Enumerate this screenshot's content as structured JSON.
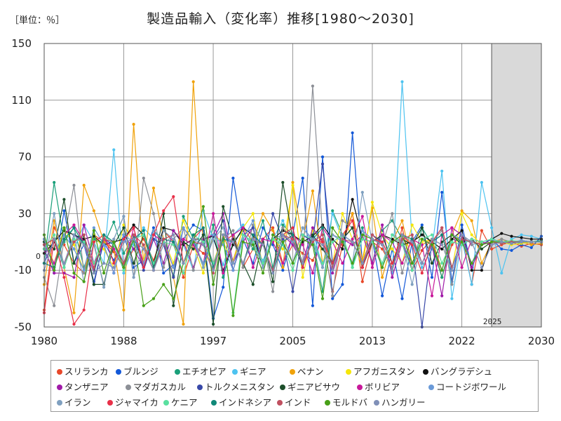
{
  "unit_label": "［単位：％］",
  "chart_data": {
    "type": "line",
    "title": "製造品輸入（変化率）推移[1980～2030]",
    "xlabel": "",
    "ylabel": "",
    "xlim": [
      1980,
      2030
    ],
    "ylim": [
      -50,
      150
    ],
    "xticks": [
      1980,
      1988,
      1997,
      2005,
      2013,
      2022,
      2030
    ],
    "yticks": [
      -50,
      -10,
      30,
      70,
      110,
      150
    ],
    "zero_label": "0",
    "forecast_start": 2025,
    "forecast_label": "2025",
    "grid": true,
    "legend_position": "bottom",
    "series": [
      {
        "name": "スリランカ",
        "color": "#e8482a",
        "values": [
          -38,
          20,
          8,
          -5,
          -12,
          15,
          10,
          3,
          -8,
          5,
          12,
          -3,
          18,
          10,
          -15,
          8,
          2,
          -5,
          10,
          15,
          -8,
          5,
          12,
          20,
          -5,
          8,
          2,
          -3,
          12,
          -25,
          8,
          30,
          -18,
          10,
          5,
          -8,
          20,
          -10,
          4,
          12,
          -15,
          8,
          15,
          -20,
          18,
          5,
          8,
          10,
          7,
          9,
          8
        ]
      },
      {
        "name": "ブルンジ",
        "color": "#1358d8",
        "values": [
          5,
          -12,
          32,
          -5,
          8,
          -18,
          10,
          -3,
          15,
          -8,
          -3,
          20,
          -12,
          -6,
          12,
          22,
          18,
          -44,
          -22,
          55,
          12,
          -5,
          20,
          8,
          -10,
          15,
          55,
          -35,
          70,
          -30,
          -20,
          87,
          -5,
          12,
          -28,
          5,
          -30,
          10,
          22,
          -15,
          45,
          -18,
          22,
          -8,
          10,
          12,
          5,
          4,
          8,
          6,
          14
        ]
      },
      {
        "name": "エチオピア",
        "color": "#1aa07a",
        "values": [
          -5,
          52,
          10,
          20,
          -8,
          12,
          8,
          24,
          2,
          14,
          -5,
          18,
          10,
          -14,
          28,
          12,
          -8,
          22,
          -15,
          10,
          18,
          5,
          25,
          -8,
          22,
          15,
          -5,
          12,
          -25,
          32,
          15,
          -8,
          20,
          -5,
          18,
          25,
          12,
          -10,
          20,
          8,
          -15,
          12,
          10,
          -5,
          8,
          12,
          10,
          10,
          9,
          10,
          11
        ]
      },
      {
        "name": "ギニア",
        "color": "#4dc3f0",
        "values": [
          10,
          -8,
          15,
          5,
          22,
          10,
          -5,
          75,
          -12,
          8,
          20,
          12,
          -5,
          18,
          8,
          -10,
          32,
          12,
          -6,
          15,
          22,
          8,
          -3,
          12,
          25,
          10,
          -5,
          18,
          -8,
          30,
          12,
          20,
          -6,
          15,
          8,
          -12,
          123,
          10,
          -8,
          5,
          60,
          -30,
          12,
          -20,
          52,
          20,
          -12,
          12,
          15,
          14,
          12
        ]
      },
      {
        "name": "ベナン",
        "color": "#f0a20a",
        "values": [
          -20,
          25,
          -8,
          -40,
          50,
          32,
          10,
          5,
          -38,
          93,
          -5,
          48,
          12,
          -15,
          -48,
          123,
          8,
          -5,
          15,
          -3,
          20,
          10,
          30,
          18,
          -8,
          52,
          10,
          46,
          -5,
          15,
          12,
          30,
          -3,
          34,
          -15,
          10,
          25,
          -5,
          8,
          12,
          -10,
          15,
          32,
          25,
          -5,
          10,
          12,
          9,
          10,
          8,
          9
        ]
      },
      {
        "name": "アフガニスタン",
        "color": "#f5e60a",
        "values": [
          12,
          -5,
          20,
          8,
          -10,
          15,
          5,
          -8,
          22,
          10,
          -3,
          18,
          12,
          -5,
          25,
          8,
          -12,
          15,
          10,
          -5,
          20,
          30,
          -8,
          12,
          5,
          50,
          -15,
          18,
          10,
          -5,
          30,
          12,
          -8,
          38,
          15,
          5,
          -5,
          22,
          10,
          12,
          8,
          -10,
          30,
          15,
          8,
          12,
          10,
          8,
          9,
          10,
          10
        ]
      },
      {
        "name": "バングラデシュ",
        "color": "#111111",
        "values": [
          2,
          10,
          18,
          15,
          12,
          14,
          8,
          10,
          12,
          22,
          15,
          -5,
          20,
          18,
          8,
          12,
          12,
          14,
          -10,
          8,
          20,
          15,
          -8,
          12,
          18,
          15,
          10,
          14,
          22,
          12,
          5,
          40,
          12,
          10,
          15,
          12,
          8,
          10,
          15,
          10,
          5,
          12,
          18,
          -10,
          -10,
          12,
          16,
          14,
          13,
          12,
          12
        ]
      },
      {
        "name": "タンザニア",
        "color": "#a01aa8",
        "values": [
          5,
          -12,
          -12,
          -15,
          22,
          -5,
          8,
          -12,
          15,
          5,
          -8,
          12,
          -5,
          18,
          10,
          -8,
          12,
          15,
          30,
          -5,
          10,
          20,
          -8,
          12,
          15,
          8,
          -5,
          20,
          10,
          -12,
          12,
          8,
          15,
          -5,
          22,
          -15,
          10,
          -10,
          12,
          8,
          -28,
          20,
          15,
          -8,
          8,
          12,
          10,
          9,
          11,
          10,
          10
        ]
      },
      {
        "name": "マダガスカル",
        "color": "#8c8f96",
        "values": [
          -15,
          -35,
          12,
          50,
          -12,
          8,
          -20,
          12,
          28,
          -15,
          55,
          30,
          -8,
          12,
          20,
          -10,
          15,
          -5,
          12,
          18,
          -8,
          22,
          10,
          -25,
          20,
          12,
          -5,
          120,
          15,
          -28,
          25,
          20,
          -5,
          12,
          8,
          30,
          -12,
          15,
          -5,
          10,
          18,
          -20,
          15,
          8,
          10,
          8,
          12,
          10,
          11,
          10,
          10
        ]
      },
      {
        "name": "トルクメニスタン",
        "color": "#3848a8",
        "values": [
          -5,
          12,
          -8,
          15,
          10,
          -20,
          12,
          8,
          -5,
          15,
          -10,
          12,
          8,
          -15,
          20,
          10,
          -5,
          12,
          25,
          -10,
          15,
          20,
          -8,
          30,
          12,
          -25,
          15,
          10,
          65,
          -5,
          12,
          20,
          -8,
          15,
          10,
          -5,
          12,
          8,
          -50,
          10,
          15,
          -8,
          12,
          10,
          8,
          12,
          10,
          9,
          11,
          10,
          10
        ]
      },
      {
        "name": "ギニアビサウ",
        "color": "#1c4e2a",
        "values": [
          10,
          5,
          40,
          -5,
          15,
          -20,
          -20,
          8,
          20,
          -5,
          15,
          -8,
          30,
          -35,
          10,
          5,
          15,
          -48,
          35,
          12,
          -5,
          -20,
          12,
          -18,
          52,
          12,
          -8,
          15,
          5,
          -5,
          12,
          20,
          -8,
          10,
          15,
          -5,
          12,
          8,
          20,
          -5,
          10,
          15,
          8,
          12,
          5,
          10,
          10,
          9,
          10,
          10,
          10
        ]
      },
      {
        "name": "ボリビア",
        "color": "#c8189a",
        "values": [
          8,
          -5,
          15,
          22,
          10,
          -10,
          12,
          5,
          -8,
          20,
          -5,
          15,
          10,
          -8,
          12,
          8,
          -5,
          30,
          -12,
          15,
          20,
          -8,
          12,
          10,
          -5,
          15,
          8,
          -12,
          20,
          10,
          -5,
          12,
          28,
          -8,
          15,
          10,
          -5,
          12,
          8,
          -28,
          15,
          20,
          -8,
          12,
          10,
          8,
          10,
          9,
          10,
          10,
          10
        ]
      },
      {
        "name": "コートジボワール",
        "color": "#6a9ad8",
        "values": [
          12,
          -8,
          15,
          5,
          -10,
          20,
          8,
          -12,
          15,
          10,
          -5,
          18,
          12,
          -8,
          20,
          10,
          -5,
          15,
          8,
          -10,
          12,
          25,
          -8,
          15,
          10,
          -5,
          20,
          12,
          -8,
          15,
          10,
          -5,
          18,
          12,
          -8,
          15,
          10,
          -5,
          12,
          8,
          -10,
          15,
          12,
          -5,
          10,
          12,
          9,
          10,
          11,
          10,
          10
        ]
      },
      {
        "name": "イラン",
        "color": "#7fa0c0",
        "values": [
          -5,
          30,
          -8,
          15,
          -18,
          10,
          -22,
          12,
          28,
          -15,
          8,
          -10,
          18,
          12,
          -5,
          15,
          -8,
          12,
          20,
          -5,
          15,
          10,
          -8,
          12,
          15,
          -5,
          20,
          10,
          -8,
          15,
          12,
          -5,
          45,
          10,
          -8,
          15,
          10,
          -20,
          12,
          8,
          -10,
          15,
          10,
          -5,
          8,
          10,
          10,
          9,
          10,
          10,
          10
        ]
      },
      {
        "name": "ジャマイカ",
        "color": "#e83048",
        "values": [
          -40,
          12,
          -15,
          -48,
          -38,
          10,
          15,
          -5,
          12,
          20,
          -8,
          15,
          32,
          42,
          -5,
          12,
          20,
          -8,
          15,
          10,
          -5,
          12,
          8,
          -10,
          15,
          20,
          -8,
          12,
          10,
          -5,
          15,
          25,
          -8,
          12,
          10,
          -5,
          15,
          8,
          -12,
          10,
          20,
          -8,
          12,
          10,
          8,
          10,
          9,
          10,
          10,
          10,
          10
        ]
      },
      {
        "name": "ケニア",
        "color": "#5ae0a0",
        "values": [
          5,
          15,
          -8,
          12,
          10,
          -5,
          15,
          8,
          -10,
          12,
          15,
          -5,
          10,
          8,
          -12,
          15,
          10,
          -5,
          12,
          -40,
          15,
          10,
          -5,
          12,
          8,
          -10,
          15,
          12,
          -5,
          10,
          15,
          -8,
          12,
          10,
          -5,
          15,
          8,
          -10,
          12,
          15,
          -5,
          10,
          8,
          12,
          10,
          12,
          10,
          11,
          10,
          10,
          10
        ]
      },
      {
        "name": "インドネシア",
        "color": "#108878",
        "values": [
          -5,
          -8,
          12,
          20,
          8,
          -12,
          15,
          10,
          -5,
          12,
          18,
          -8,
          12,
          10,
          -5,
          15,
          20,
          -8,
          12,
          10,
          -5,
          15,
          8,
          -12,
          10,
          15,
          -5,
          12,
          20,
          -8,
          15,
          10,
          -5,
          12,
          8,
          -10,
          15,
          12,
          -5,
          10,
          15,
          -8,
          12,
          10,
          8,
          10,
          9,
          10,
          10,
          10,
          10
        ]
      },
      {
        "name": "インド",
        "color": "#c05060",
        "values": [
          8,
          12,
          -5,
          10,
          15,
          -8,
          12,
          10,
          -5,
          15,
          8,
          -10,
          12,
          15,
          -5,
          10,
          8,
          -12,
          15,
          10,
          -5,
          12,
          8,
          -10,
          15,
          12,
          -5,
          10,
          15,
          -8,
          12,
          10,
          -5,
          15,
          8,
          -10,
          12,
          15,
          -5,
          10,
          20,
          -8,
          12,
          10,
          8,
          10,
          9,
          10,
          10,
          10,
          10
        ]
      },
      {
        "name": "モルドバ",
        "color": "#48a018",
        "values": [
          15,
          -10,
          20,
          -12,
          -18,
          18,
          -12,
          10,
          -8,
          12,
          -35,
          -30,
          -20,
          -30,
          -5,
          10,
          35,
          -20,
          15,
          -42,
          10,
          8,
          -12,
          15,
          10,
          -5,
          12,
          8,
          -30,
          20,
          10,
          -5,
          15,
          12,
          -8,
          10,
          15,
          -5,
          12,
          8,
          -10,
          15,
          10,
          -5,
          8,
          10,
          10,
          9,
          10,
          10,
          10
        ]
      },
      {
        "name": "ハンガリー",
        "color": "#8090b8",
        "values": [
          -10,
          12,
          -5,
          15,
          8,
          -12,
          -5,
          -8,
          10,
          12,
          5,
          -10,
          8,
          15,
          -5,
          12,
          8,
          -10,
          15,
          10,
          -5,
          12,
          8,
          -12,
          15,
          10,
          -5,
          12,
          8,
          -10,
          15,
          10,
          -5,
          12,
          8,
          -10,
          15,
          10,
          -5,
          12,
          8,
          -10,
          15,
          10,
          -8,
          8,
          10,
          9,
          10,
          10,
          10
        ]
      }
    ]
  }
}
